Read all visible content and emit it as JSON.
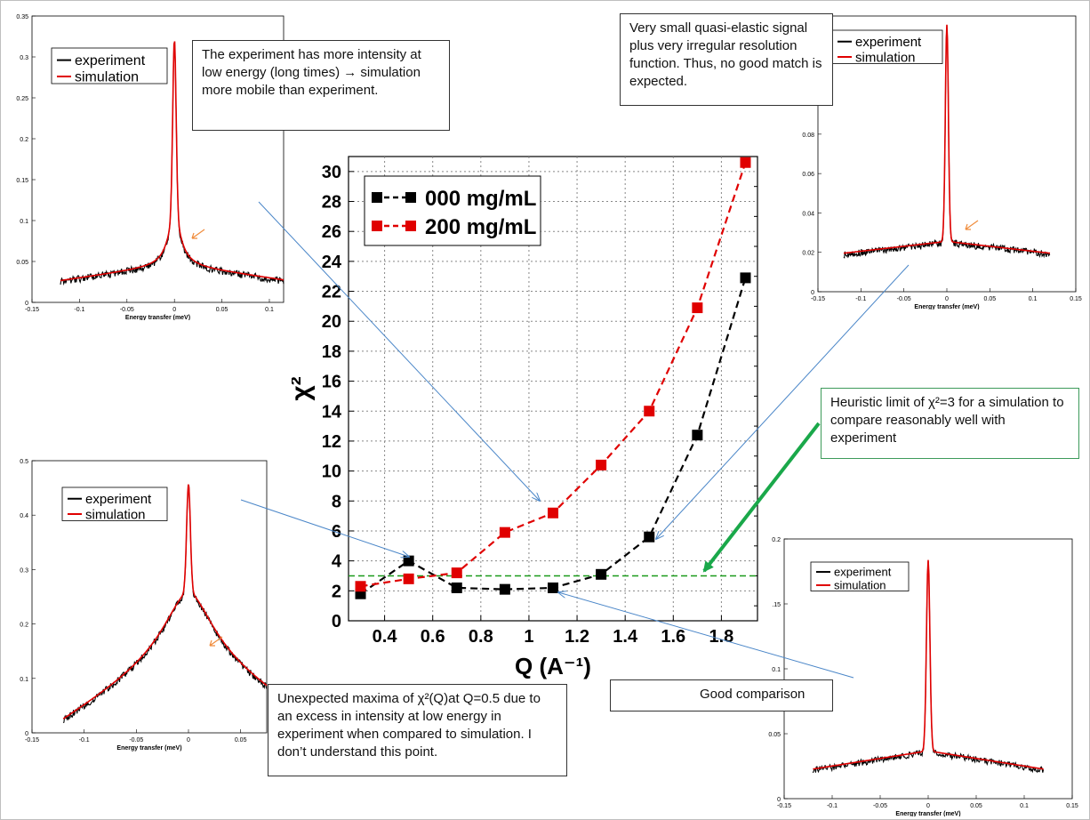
{
  "annotations": {
    "top_left": "The experiment has more intensity at low energy (long times) → simulation more mobile than experiment.",
    "top_right": "Very small quasi-elastic signal plus very irregular resolution function. Thus, no good match is expected.",
    "heuristic": "Heuristic limit of χ²=3 for a simulation to compare reasonably well with experiment",
    "good": "Good comparison",
    "unexpected": "Unexpected maxima of χ²(Q)at Q=0.5 due to an excess in intensity at low energy in experiment when compared to simulation. I don’t understand this point."
  },
  "colors": {
    "experiment": "#000000",
    "simulation": "#e00000",
    "threshold": "#1a9a1a",
    "arrow_blue": "#4a86c8",
    "arrow_green": "#1aa84a",
    "arrow_orange": "#f08c3c"
  },
  "chart_data": [
    {
      "type": "scatter",
      "id": "main",
      "xlabel": "Q (A⁻¹)",
      "ylabel": "χ²",
      "xlim": [
        0.25,
        1.95
      ],
      "ylim": [
        0,
        31
      ],
      "xticks": [
        "0.4",
        "0.6",
        "0.8",
        "1",
        "1.2",
        "1.4",
        "1.6",
        "1.8"
      ],
      "yticks": [
        "0",
        "2",
        "4",
        "6",
        "8",
        "10",
        "12",
        "14",
        "16",
        "18",
        "20",
        "22",
        "24",
        "26",
        "28",
        "30"
      ],
      "grid": true,
      "legend_position": "top-left",
      "threshold": 3,
      "series": [
        {
          "name": "000 mg/mL",
          "color": "#000000",
          "x": [
            0.3,
            0.5,
            0.7,
            0.9,
            1.1,
            1.3,
            1.5,
            1.7,
            1.9
          ],
          "y": [
            1.8,
            4.0,
            2.2,
            2.1,
            2.2,
            3.1,
            5.6,
            12.4,
            22.9
          ]
        },
        {
          "name": "200 mg/mL",
          "color": "#e00000",
          "x": [
            0.3,
            0.5,
            0.7,
            0.9,
            1.1,
            1.3,
            1.5,
            1.7,
            1.9
          ],
          "y": [
            2.3,
            2.8,
            3.2,
            5.9,
            7.2,
            10.4,
            14.0,
            20.9,
            30.6
          ]
        }
      ]
    },
    {
      "type": "line",
      "id": "tl",
      "xlabel": "Energy transfer (meV)",
      "xticks": [
        "-0.15",
        "-0.1",
        "-0.05",
        "0",
        "0.05",
        "0.1"
      ],
      "yticks": [
        "0",
        "0.05",
        "0.1",
        "0.15",
        "0.2",
        "0.25",
        "0.3",
        "0.35"
      ],
      "xlim": [
        -0.15,
        0.115
      ],
      "ylim": [
        0,
        0.35
      ],
      "legend_position": "top-left",
      "legend": [
        "experiment",
        "simulation"
      ],
      "profile": {
        "baseline_edge": 0.025,
        "baseline_center": 0.045,
        "peak": 0.32,
        "lor_amp": 0.06,
        "lor_width": 0.008,
        "x_min": -0.12,
        "x_max": 0.115
      }
    },
    {
      "type": "line",
      "id": "tr",
      "xlabel": "Energy transfer (meV)",
      "xticks": [
        "-0.15",
        "-0.1",
        "-0.05",
        "0",
        "0.05",
        "0.1",
        "0.15"
      ],
      "yticks": [
        "0",
        "0.02",
        "0.04",
        "0.06",
        "0.08",
        "0.1"
      ],
      "xlim": [
        -0.15,
        0.15
      ],
      "ylim": [
        0,
        0.14
      ],
      "legend_position": "top-left",
      "legend": [
        "experiment",
        "simulation"
      ],
      "profile": {
        "baseline_edge": 0.019,
        "baseline_center": 0.025,
        "peak": 0.135,
        "lor_amp": 0.0,
        "lor_width": 0.004,
        "x_min": -0.12,
        "x_max": 0.12
      }
    },
    {
      "type": "line",
      "id": "bl",
      "xlabel": "Energy transfer (meV)",
      "xticks": [
        "-0.15",
        "-0.1",
        "-0.05",
        "0",
        "0.05"
      ],
      "yticks": [
        "0",
        "0.1",
        "0.2",
        "0.3",
        "0.4",
        "0.5"
      ],
      "xlim": [
        -0.15,
        0.075
      ],
      "ylim": [
        0,
        0.5
      ],
      "legend_position": "top-left",
      "legend": [
        "experiment",
        "simulation"
      ],
      "profile": {
        "baseline_edge": 0.018,
        "baseline_center": 0.16,
        "peak": 0.455,
        "lor_amp": 0.1,
        "lor_width": 0.03,
        "x_min": -0.12,
        "x_max": 0.075
      }
    },
    {
      "type": "line",
      "id": "br",
      "xlabel": "Energy transfer (meV)",
      "xticks": [
        "-0.15",
        "-0.1",
        "-0.05",
        "0",
        "0.05",
        "0.1",
        "0.15"
      ],
      "yticks": [
        "0",
        "0.05",
        "0.1",
        "0.15",
        "0.2"
      ],
      "xlim": [
        -0.15,
        0.15
      ],
      "ylim": [
        0,
        0.2
      ],
      "legend_position": "top-left",
      "legend": [
        "experiment",
        "simulation"
      ],
      "profile": {
        "baseline_edge": 0.022,
        "baseline_center": 0.036,
        "peak": 0.183,
        "lor_amp": 0.0,
        "lor_width": 0.004,
        "x_min": -0.12,
        "x_max": 0.12
      }
    }
  ]
}
